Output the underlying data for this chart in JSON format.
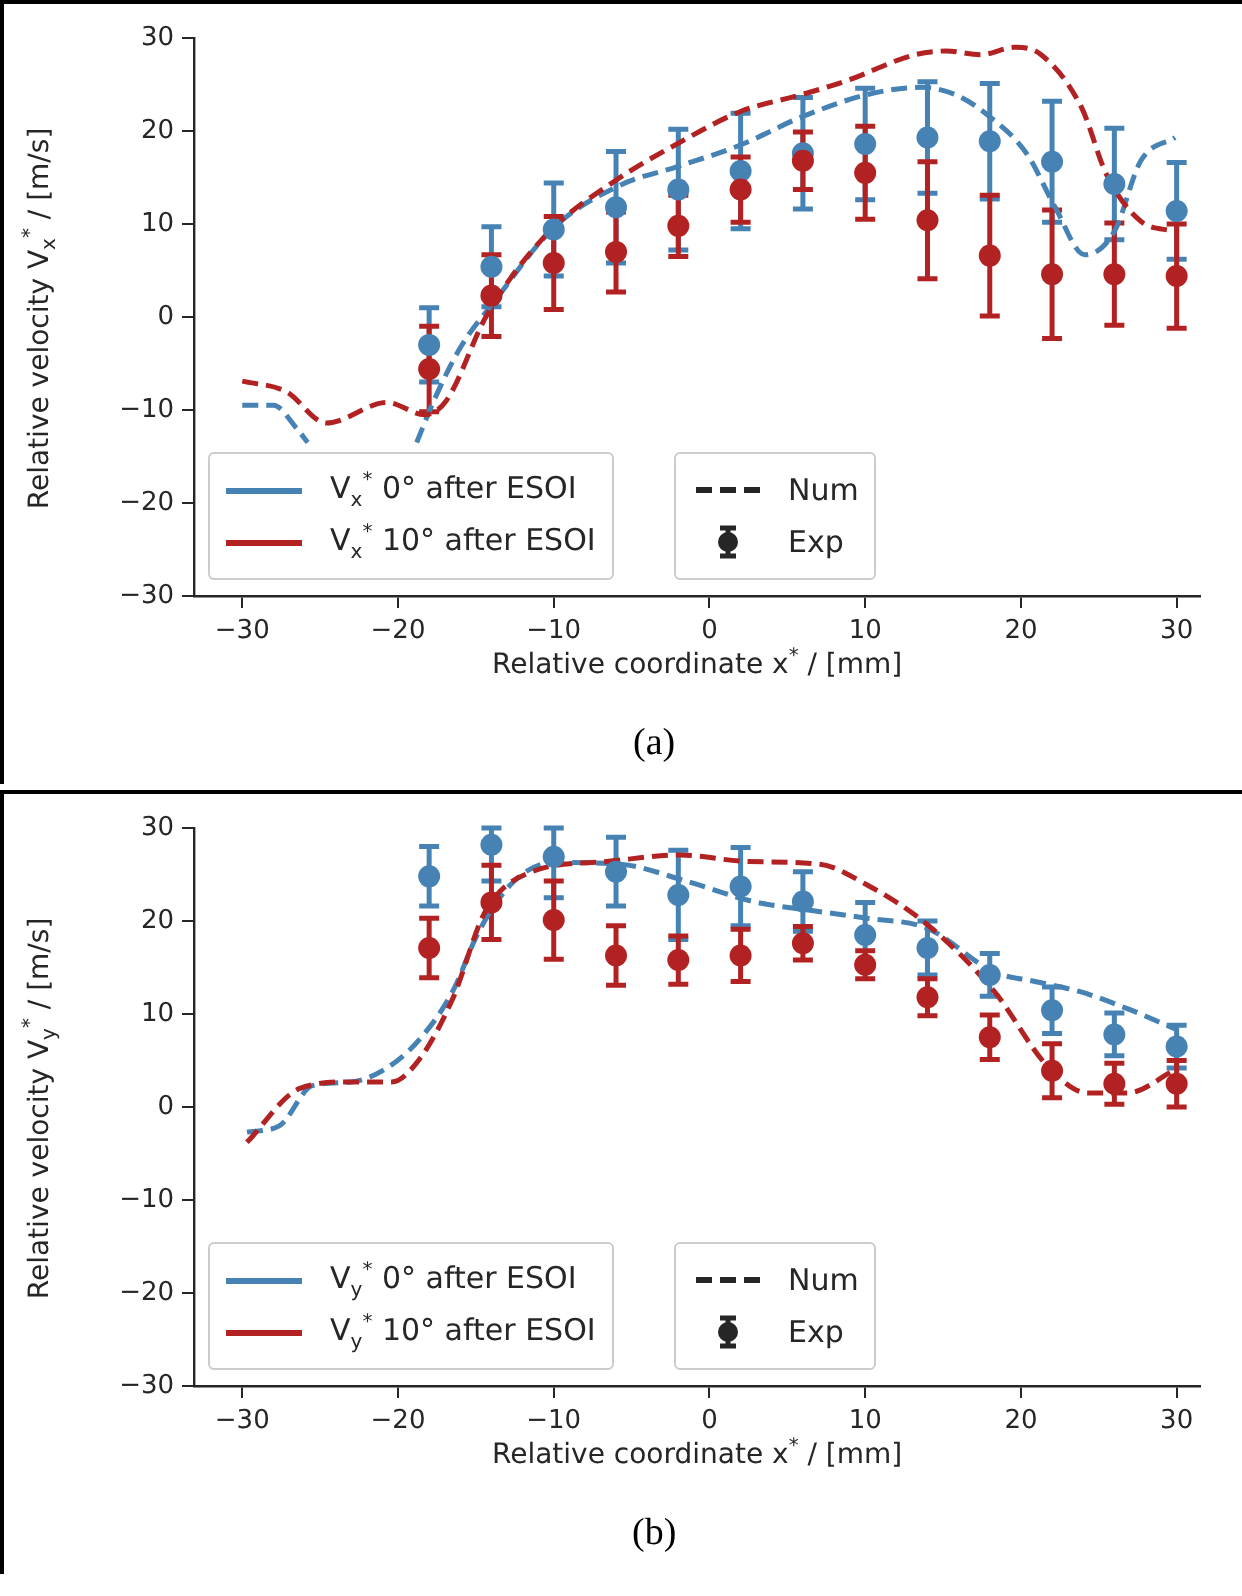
{
  "chart_data": [
    {
      "type": "line",
      "title": "(a)",
      "xlabel": "Relative coordinate x$^{*}$ / [mm]",
      "ylabel": "Relative velocity V$_{x}$$^{*}$ / [m/s]",
      "xlim": [
        -33.1,
        31.5
      ],
      "ylim": [
        -30,
        30
      ],
      "xticks": [
        {
          "value": -30,
          "label": "−30"
        },
        {
          "value": -20,
          "label": "−20"
        },
        {
          "value": -10,
          "label": "−10"
        },
        0,
        10,
        20,
        30
      ],
      "yticks": [
        {
          "value": -30,
          "label": "−30"
        },
        {
          "value": -20,
          "label": "−20"
        },
        {
          "value": -10,
          "label": "−10"
        },
        0,
        10,
        20,
        30
      ],
      "grid": false,
      "legend": "bottom left",
      "annotations": [
        "Num",
        "Exp"
      ],
      "series": [
        {
          "type": "line",
          "line_style": "dashed",
          "marker": "none",
          "color": "#4682b4",
          "x": [
            -30,
            -28,
            -26.5,
            -25.8,
            -22,
            -18.8,
            -17.7,
            -16,
            -13.8,
            -10,
            -5.7,
            -2.2,
            2,
            5.9,
            10.1,
            13.6,
            15.8,
            17.8,
            20.4,
            22.2,
            24.1,
            26,
            27.7,
            29.9
          ],
          "values": [
            -9.5,
            -9.5,
            -12,
            -13.5,
            null,
            -13.5,
            -9,
            -3.3,
            1.7,
            9.6,
            14.2,
            16.1,
            18.5,
            21.5,
            23.9,
            24.7,
            23.9,
            21.8,
            17.5,
            11.8,
            6.7,
            9.2,
            16.8,
            19.3
          ]
        },
        {
          "type": "line",
          "line_style": "dashed",
          "marker": "none",
          "color": "#b22222",
          "x": [
            -30,
            -27.2,
            -24.6,
            -20.7,
            -18.3,
            -16.9,
            -14.3,
            -10.5,
            -6.1,
            -2.2,
            2,
            5.9,
            8.8,
            13.2,
            15.2,
            17.4,
            19.6,
            21.3,
            23.9,
            25.5,
            27.7,
            29.9
          ],
          "values": [
            -6.9,
            -8,
            -11.4,
            -9.2,
            -10.5,
            -9,
            0.2,
            8.8,
            14.6,
            18.5,
            22.1,
            23.9,
            25.4,
            28.2,
            28.6,
            28.2,
            29,
            28.2,
            22.5,
            15.3,
            10.3,
            9.2
          ]
        },
        {
          "type": "scatter",
          "name": "V$_{x}$$^{*}$ 0° after ESOI",
          "marker": "circle",
          "color": "#4682b4",
          "x": [
            -18,
            -14,
            -10,
            -6,
            -2,
            2,
            6,
            10,
            14,
            18,
            22,
            26,
            30
          ],
          "values": [
            -3,
            5.4,
            9.4,
            11.8,
            13.7,
            15.7,
            17.6,
            18.6,
            19.3,
            18.9,
            16.7,
            14.3,
            11.4
          ],
          "errors": [
            4,
            4.3,
            5,
            6,
            6.5,
            6.2,
            6,
            6,
            6,
            6.2,
            6.5,
            6,
            5.2
          ]
        },
        {
          "type": "scatter",
          "name": "V$_{x}$$^{*}$ 10° after ESOI",
          "marker": "circle",
          "color": "#b22222",
          "x": [
            -18,
            -14,
            -10,
            -6,
            -2,
            2,
            6,
            10,
            14,
            18,
            22,
            26,
            30
          ],
          "values": [
            -5.6,
            2.3,
            5.8,
            7,
            9.8,
            13.7,
            16.8,
            15.5,
            10.4,
            6.6,
            4.6,
            4.6,
            4.4
          ],
          "errors": [
            4.6,
            4.4,
            5,
            4.3,
            3.3,
            3.5,
            3.1,
            5,
            6.3,
            6.5,
            6.9,
            5.5,
            5.6
          ]
        }
      ]
    },
    {
      "type": "line",
      "title": "(b)",
      "xlabel": "Relative coordinate x$^{*}$ / [mm]",
      "ylabel": "Relative velocity V$_{y}$$^{*}$ / [m/s]",
      "xlim": [
        -33.1,
        31.5
      ],
      "ylim": [
        -30,
        30
      ],
      "xticks": [
        {
          "value": -30,
          "label": "−30"
        },
        {
          "value": -20,
          "label": "−20"
        },
        {
          "value": -10,
          "label": "−10"
        },
        0,
        10,
        20,
        30
      ],
      "yticks": [
        {
          "value": -30,
          "label": "−30"
        },
        {
          "value": -20,
          "label": "−20"
        },
        {
          "value": -10,
          "label": "−10"
        },
        0,
        10,
        20,
        30
      ],
      "grid": false,
      "legend": "bottom left",
      "annotations": [
        "Num",
        "Exp"
      ],
      "series": [
        {
          "type": "line",
          "line_style": "dashed",
          "marker": "none",
          "color": "#4682b4",
          "x": [
            -29.7,
            -27.6,
            -25.5,
            -23,
            -20.8,
            -18.6,
            -16.5,
            -14.8,
            -12.6,
            -10,
            -5.7,
            -1.5,
            2.8,
            7.1,
            10.1,
            14,
            18.3,
            20.9,
            23.8,
            26.8,
            29.9
          ],
          "values": [
            -2.7,
            -2,
            2.3,
            2.7,
            4.1,
            7.3,
            12.4,
            18.9,
            24.2,
            26.3,
            26.1,
            24.3,
            22.1,
            21,
            20.3,
            19.2,
            14.5,
            13.5,
            12.4,
            10.6,
            8.4
          ]
        },
        {
          "type": "line",
          "line_style": "dashed",
          "marker": "none",
          "color": "#b22222",
          "x": [
            -29.7,
            -26.3,
            -23,
            -20.4,
            -18.6,
            -16.5,
            -14.4,
            -11.4,
            -6.6,
            -1.9,
            2.4,
            7.1,
            10.1,
            14,
            18.3,
            21.7,
            24.3,
            26.8,
            30
          ],
          "values": [
            -3.8,
            2,
            2.7,
            2.7,
            5.2,
            11.6,
            21,
            25.3,
            26.4,
            27.1,
            26.4,
            26.1,
            23.9,
            19.6,
            12.4,
            4.4,
            1.5,
            1.5,
            4.1
          ]
        },
        {
          "type": "scatter",
          "name": "V$_{y}$$^{*}$ 0° after ESOI",
          "marker": "circle",
          "color": "#4682b4",
          "x": [
            -18,
            -14,
            -10,
            -6,
            -2,
            2,
            6,
            10,
            14,
            18,
            22,
            26,
            30
          ],
          "values": [
            24.8,
            28.2,
            26.9,
            25.3,
            22.8,
            23.7,
            22.1,
            18.5,
            17.1,
            14.2,
            10.4,
            7.8,
            6.5
          ],
          "errors": [
            3.2,
            [
              24.3,
              30
            ],
            [
              22.5,
              30
            ],
            3.7,
            4.8,
            4.2,
            3.2,
            3.5,
            2.9,
            2.3,
            2.5,
            2.3,
            2.3
          ]
        },
        {
          "type": "scatter",
          "name": "V$_{y}$$^{*}$ 10° after ESOI",
          "marker": "circle",
          "color": "#b22222",
          "x": [
            -18,
            -14,
            -10,
            -6,
            -2,
            2,
            6,
            10,
            14,
            18,
            22,
            26,
            30
          ],
          "values": [
            17.1,
            22,
            20.1,
            16.3,
            15.8,
            16.3,
            17.6,
            15.3,
            11.8,
            7.5,
            3.9,
            2.5,
            2.5
          ],
          "errors": [
            3.2,
            4,
            4.2,
            3.2,
            2.6,
            2.8,
            1.8,
            1.5,
            2,
            2.4,
            2.9,
            2.2,
            2.5
          ]
        }
      ]
    }
  ]
}
